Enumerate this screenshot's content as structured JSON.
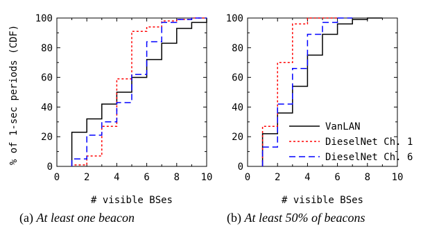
{
  "chart_data": [
    {
      "type": "line",
      "step": true,
      "xlabel": "# visible BSes",
      "ylabel": "% of 1-sec periods (CDF)",
      "xlim": [
        0,
        10
      ],
      "ylim": [
        0,
        100
      ],
      "xticks": [
        "0",
        "2",
        "4",
        "6",
        "8",
        "10"
      ],
      "yticks": [
        "0",
        "20",
        "40",
        "60",
        "80",
        "100"
      ],
      "caption_prefix": "(a) ",
      "caption": "At least one beacon",
      "series": [
        {
          "name": "VanLAN",
          "color": "#000000",
          "dash": "solid",
          "x": [
            1,
            2,
            3,
            4,
            5,
            6,
            7,
            8,
            9,
            10
          ],
          "y": [
            23,
            32,
            42,
            50,
            60,
            72,
            83,
            93,
            97,
            100
          ]
        },
        {
          "name": "DieselNet Ch. 1",
          "color": "#ff0000",
          "dash": "dotted",
          "x": [
            1,
            2,
            3,
            4,
            5,
            6,
            7,
            8,
            9,
            10
          ],
          "y": [
            1,
            7,
            27,
            59,
            91,
            94,
            98,
            99,
            100,
            100
          ]
        },
        {
          "name": "DieselNet Ch. 6",
          "color": "#0000ff",
          "dash": "dashed",
          "x": [
            1,
            2,
            3,
            4,
            5,
            6,
            7,
            8,
            9,
            10
          ],
          "y": [
            5,
            21,
            30,
            43,
            62,
            84,
            97,
            99,
            100,
            100
          ]
        }
      ]
    },
    {
      "type": "line",
      "step": true,
      "xlabel": "# visible BSes",
      "ylabel": "",
      "xlim": [
        0,
        10
      ],
      "ylim": [
        0,
        100
      ],
      "xticks": [
        "0",
        "2",
        "4",
        "6",
        "8",
        "10"
      ],
      "yticks": [
        "0",
        "20",
        "40",
        "60",
        "80",
        "100"
      ],
      "caption_prefix": "(b) ",
      "caption": "At least 50% of beacons",
      "legend_position": "lower-right",
      "series": [
        {
          "name": "VanLAN",
          "color": "#000000",
          "dash": "solid",
          "x": [
            1,
            2,
            3,
            4,
            5,
            6,
            7,
            8,
            9
          ],
          "y": [
            22,
            36,
            54,
            75,
            89,
            96,
            99,
            100,
            100
          ]
        },
        {
          "name": "DieselNet Ch. 1",
          "color": "#ff0000",
          "dash": "dotted",
          "x": [
            1,
            2,
            3,
            4,
            5,
            6
          ],
          "y": [
            27,
            70,
            96,
            100,
            100,
            100
          ]
        },
        {
          "name": "DieselNet Ch. 6",
          "color": "#0000ff",
          "dash": "dashed",
          "x": [
            1,
            2,
            3,
            4,
            5,
            6,
            7
          ],
          "y": [
            13,
            42,
            66,
            89,
            97,
            100,
            100
          ]
        }
      ]
    }
  ]
}
